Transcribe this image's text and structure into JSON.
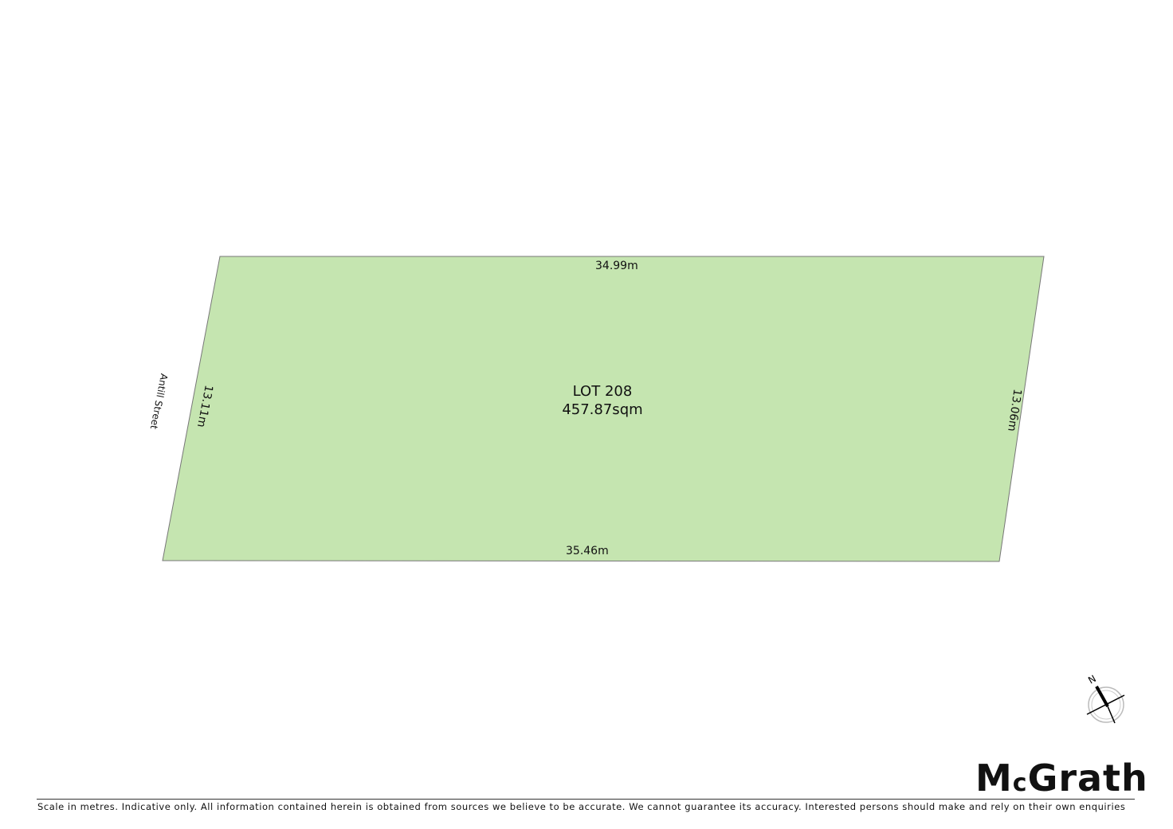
{
  "lot": {
    "name": "LOT 208",
    "area": "457.87sqm",
    "fill": "#c5e5b0"
  },
  "dimensions": {
    "top": "34.99m",
    "bottom": "35.46m",
    "left": "13.11m",
    "right": "13.06m"
  },
  "street": "Antill Street",
  "compass": {
    "label": "N"
  },
  "logo": {
    "text_pre": "M",
    "text_c": "c",
    "text_post": "Grath"
  },
  "footer": "Scale in metres. Indicative only. All information contained herein is obtained from sources we believe to be accurate. We cannot guarantee its accuracy. Interested persons should make and rely on their own enquiries"
}
